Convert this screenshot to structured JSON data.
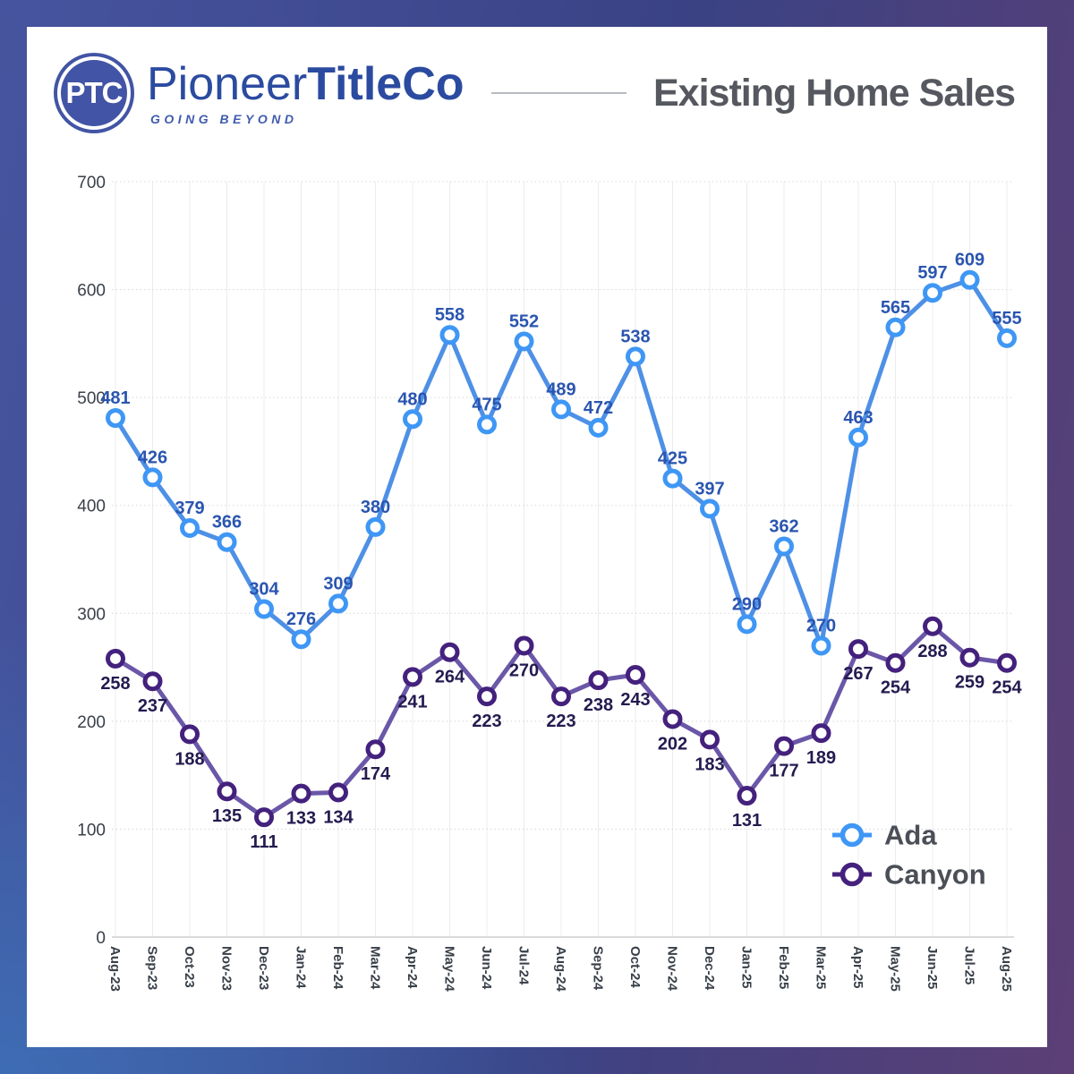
{
  "header": {
    "logo": {
      "monogram": "PTC",
      "brand_regular": "Pioneer",
      "brand_bold": "TitleCo",
      "tagline": "GOING BEYOND"
    },
    "title": "Existing Home Sales"
  },
  "colors": {
    "frame_blue": "#46549f",
    "frame_purple": "#5c3f75",
    "brand_blue": "#2b4ba0",
    "logo_fill": "#4254a5",
    "title_text": "#55585f",
    "axis_text": "#394049",
    "grid_vertical": "#ececec",
    "grid_horizontal": "#d8d8d8",
    "axis_baseline": "#cfcfcf",
    "legend_text": "#4b4f57"
  },
  "chart_data": {
    "type": "line",
    "title": "Existing Home Sales",
    "categories": [
      "Aug-23",
      "Sep-23",
      "Oct-23",
      "Nov-23",
      "Dec-23",
      "Jan-24",
      "Feb-24",
      "Mar-24",
      "Apr-24",
      "May-24",
      "Jun-24",
      "Jul-24",
      "Aug-24",
      "Sep-24",
      "Oct-24",
      "Nov-24",
      "Dec-24",
      "Jan-25",
      "Feb-25",
      "Mar-25",
      "Apr-25",
      "May-25",
      "Jun-25",
      "Jul-25",
      "Aug-25"
    ],
    "series": [
      {
        "name": "Ada",
        "line_color": "#4e90e6",
        "marker_color": "#3f97f5",
        "label_color": "#2a55b0",
        "label_position": "above",
        "values": [
          481,
          426,
          379,
          366,
          304,
          276,
          309,
          380,
          480,
          558,
          475,
          552,
          489,
          472,
          538,
          425,
          397,
          290,
          362,
          270,
          463,
          565,
          597,
          609,
          555
        ]
      },
      {
        "name": "Canyon",
        "line_color": "#6b57a8",
        "marker_color": "#44217d",
        "label_color": "#241b50",
        "label_position": "below",
        "values": [
          258,
          237,
          188,
          135,
          111,
          133,
          134,
          174,
          241,
          264,
          223,
          270,
          223,
          238,
          243,
          202,
          183,
          131,
          177,
          189,
          267,
          254,
          288,
          259,
          254
        ]
      }
    ],
    "ylim": [
      0,
      700
    ],
    "yticks": [
      0,
      100,
      200,
      300,
      400,
      500,
      600,
      700
    ],
    "grid": true,
    "legend_position": "inside-bottom-right"
  }
}
